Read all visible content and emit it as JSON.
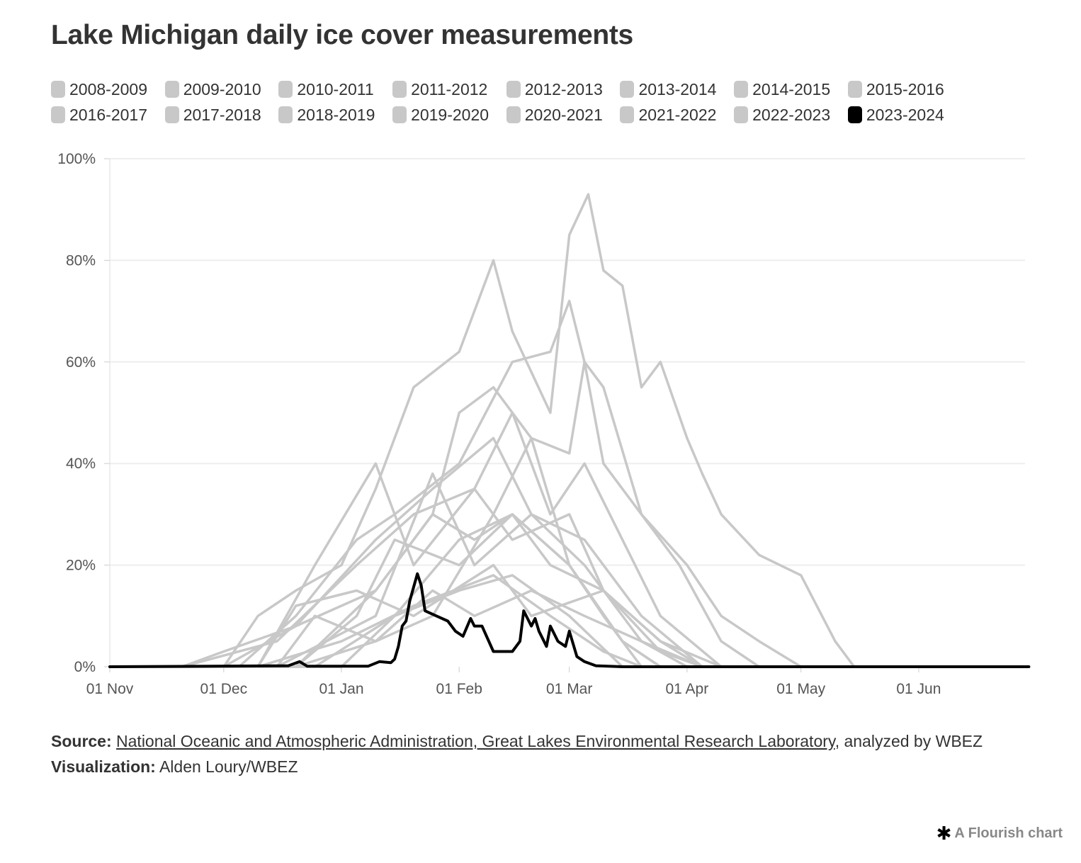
{
  "title": "Lake Michigan daily ice cover measurements",
  "colors": {
    "highlight": "#000000",
    "other": "#c8c8c8",
    "grid": "#eeeeee",
    "text": "#333333"
  },
  "footer": {
    "source_label": "Source:",
    "source_link": "National Oceanic and Atmospheric Administration, Great Lakes Environmental Research Laboratory",
    "source_suffix": ", analyzed by WBEZ",
    "viz_label": "Visualization:",
    "viz_text": "Alden Loury/WBEZ"
  },
  "branding": {
    "icon": "asterisk-icon",
    "text": "A Flourish chart"
  },
  "chart_data": {
    "type": "line",
    "xlabel": "",
    "ylabel": "",
    "x_range": [
      "Nov 1",
      "Jun 30"
    ],
    "ylim": [
      0,
      100
    ],
    "y_ticks": [
      "0%",
      "20%",
      "40%",
      "60%",
      "80%",
      "100%"
    ],
    "x_ticks": [
      "01 Nov",
      "01 Dec",
      "01 Jan",
      "01 Feb",
      "01 Mar",
      "01 Apr",
      "01 May",
      "01 Jun"
    ],
    "grid": "horizontal",
    "legend_placement": "top",
    "highlight_series": "2023-2024",
    "series": [
      {
        "name": "2008-2009",
        "points": [
          [
            "Nov 20",
            0
          ],
          [
            "Dec 15",
            5
          ],
          [
            "Jan 5",
            20
          ],
          [
            "Jan 20",
            30
          ],
          [
            "Feb 5",
            35
          ],
          [
            "Feb 15",
            25
          ],
          [
            "Mar 1",
            30
          ],
          [
            "Mar 10",
            15
          ],
          [
            "Mar 25",
            5
          ],
          [
            "Apr 10",
            0
          ]
        ]
      },
      {
        "name": "2009-2010",
        "points": [
          [
            "Dec 20",
            0
          ],
          [
            "Jan 5",
            10
          ],
          [
            "Jan 15",
            25
          ],
          [
            "Feb 1",
            20
          ],
          [
            "Feb 15",
            30
          ],
          [
            "Mar 1",
            20
          ],
          [
            "Mar 15",
            5
          ],
          [
            "Mar 25",
            0
          ]
        ]
      },
      {
        "name": "2010-2011",
        "points": [
          [
            "Dec 1",
            0
          ],
          [
            "Dec 20",
            8
          ],
          [
            "Jan 10",
            25
          ],
          [
            "Jan 25",
            35
          ],
          [
            "Feb 10",
            45
          ],
          [
            "Feb 20",
            30
          ],
          [
            "Mar 5",
            20
          ],
          [
            "Mar 20",
            5
          ],
          [
            "Apr 5",
            0
          ]
        ]
      },
      {
        "name": "2011-2012",
        "points": [
          [
            "Dec 25",
            0
          ],
          [
            "Jan 15",
            10
          ],
          [
            "Feb 1",
            15
          ],
          [
            "Feb 15",
            18
          ],
          [
            "Mar 1",
            10
          ],
          [
            "Mar 15",
            0
          ]
        ]
      },
      {
        "name": "2012-2013",
        "points": [
          [
            "Dec 15",
            0
          ],
          [
            "Jan 10",
            10
          ],
          [
            "Jan 25",
            38
          ],
          [
            "Feb 5",
            20
          ],
          [
            "Feb 20",
            30
          ],
          [
            "Mar 5",
            25
          ],
          [
            "Mar 20",
            10
          ],
          [
            "Apr 5",
            0
          ]
        ]
      },
      {
        "name": "2013-2014",
        "points": [
          [
            "Dec 1",
            0
          ],
          [
            "Dec 10",
            10
          ],
          [
            "Dec 20",
            15
          ],
          [
            "Jan 1",
            20
          ],
          [
            "Jan 10",
            35
          ],
          [
            "Jan 20",
            55
          ],
          [
            "Feb 1",
            62
          ],
          [
            "Feb 10",
            80
          ],
          [
            "Feb 15",
            66
          ],
          [
            "Feb 25",
            50
          ],
          [
            "Mar 1",
            85
          ],
          [
            "Mar 6",
            93
          ],
          [
            "Mar 10",
            78
          ],
          [
            "Mar 15",
            75
          ],
          [
            "Mar 20",
            55
          ],
          [
            "Mar 25",
            60
          ],
          [
            "Apr 1",
            45
          ],
          [
            "Apr 5",
            38
          ],
          [
            "Apr 10",
            30
          ],
          [
            "Apr 20",
            22
          ],
          [
            "May 1",
            18
          ],
          [
            "May 10",
            5
          ],
          [
            "May 15",
            0
          ]
        ]
      },
      {
        "name": "2014-2015",
        "points": [
          [
            "Dec 5",
            0
          ],
          [
            "Dec 20",
            10
          ],
          [
            "Jan 5",
            25
          ],
          [
            "Jan 15",
            30
          ],
          [
            "Feb 1",
            40
          ],
          [
            "Feb 15",
            60
          ],
          [
            "Feb 25",
            62
          ],
          [
            "Mar 1",
            72
          ],
          [
            "Mar 5",
            60
          ],
          [
            "Mar 10",
            40
          ],
          [
            "Mar 20",
            30
          ],
          [
            "Apr 1",
            20
          ],
          [
            "Apr 10",
            10
          ],
          [
            "Apr 20",
            5
          ],
          [
            "May 1",
            0
          ]
        ]
      },
      {
        "name": "2015-2016",
        "points": [
          [
            "Jan 1",
            0
          ],
          [
            "Jan 15",
            10
          ],
          [
            "Feb 1",
            25
          ],
          [
            "Feb 15",
            30
          ],
          [
            "Mar 1",
            20
          ],
          [
            "Mar 10",
            10
          ],
          [
            "Mar 20",
            0
          ]
        ]
      },
      {
        "name": "2016-2017",
        "points": [
          [
            "Dec 10",
            0
          ],
          [
            "Dec 20",
            12
          ],
          [
            "Jan 5",
            15
          ],
          [
            "Jan 20",
            10
          ],
          [
            "Feb 10",
            20
          ],
          [
            "Feb 20",
            10
          ],
          [
            "Mar 10",
            15
          ],
          [
            "Mar 25",
            3
          ],
          [
            "Apr 5",
            0
          ]
        ]
      },
      {
        "name": "2017-2018",
        "points": [
          [
            "Dec 10",
            0
          ],
          [
            "Dec 25",
            20
          ],
          [
            "Jan 10",
            40
          ],
          [
            "Jan 20",
            20
          ],
          [
            "Feb 5",
            35
          ],
          [
            "Feb 15",
            50
          ],
          [
            "Feb 25",
            30
          ],
          [
            "Mar 5",
            40
          ],
          [
            "Mar 15",
            25
          ],
          [
            "Mar 25",
            10
          ],
          [
            "Apr 10",
            0
          ]
        ]
      },
      {
        "name": "2018-2019",
        "points": [
          [
            "Nov 20",
            0
          ],
          [
            "Dec 1",
            3
          ],
          [
            "Dec 20",
            8
          ],
          [
            "Jan 10",
            15
          ],
          [
            "Jan 25",
            30
          ],
          [
            "Feb 1",
            50
          ],
          [
            "Feb 10",
            55
          ],
          [
            "Feb 20",
            45
          ],
          [
            "Mar 1",
            42
          ],
          [
            "Mar 5",
            60
          ],
          [
            "Mar 10",
            55
          ],
          [
            "Mar 20",
            30
          ],
          [
            "Mar 30",
            20
          ],
          [
            "Apr 10",
            5
          ],
          [
            "Apr 20",
            0
          ]
        ]
      },
      {
        "name": "2019-2020",
        "points": [
          [
            "Dec 10",
            0
          ],
          [
            "Jan 1",
            5
          ],
          [
            "Jan 20",
            12
          ],
          [
            "Feb 10",
            18
          ],
          [
            "Feb 25",
            10
          ],
          [
            "Mar 10",
            3
          ],
          [
            "Mar 20",
            0
          ]
        ]
      },
      {
        "name": "2020-2021",
        "points": [
          [
            "Dec 20",
            0
          ],
          [
            "Jan 10",
            5
          ],
          [
            "Jan 25",
            10
          ],
          [
            "Feb 10",
            30
          ],
          [
            "Feb 20",
            45
          ],
          [
            "Mar 1",
            20
          ],
          [
            "Mar 15",
            5
          ],
          [
            "Mar 25",
            0
          ]
        ]
      },
      {
        "name": "2021-2022",
        "points": [
          [
            "Dec 20",
            0
          ],
          [
            "Jan 10",
            15
          ],
          [
            "Jan 25",
            30
          ],
          [
            "Feb 5",
            25
          ],
          [
            "Feb 15",
            30
          ],
          [
            "Feb 25",
            20
          ],
          [
            "Mar 10",
            15
          ],
          [
            "Mar 25",
            5
          ],
          [
            "Apr 5",
            0
          ]
        ]
      },
      {
        "name": "2022-2023",
        "points": [
          [
            "Dec 15",
            0
          ],
          [
            "Dec 25",
            10
          ],
          [
            "Jan 10",
            5
          ],
          [
            "Jan 25",
            15
          ],
          [
            "Feb 5",
            10
          ],
          [
            "Feb 20",
            15
          ],
          [
            "Mar 5",
            10
          ],
          [
            "Mar 20",
            5
          ],
          [
            "Apr 1",
            0
          ]
        ]
      },
      {
        "name": "2023-2024",
        "points": [
          [
            "Nov 1",
            0
          ],
          [
            "Dec 18",
            0.2
          ],
          [
            "Dec 21",
            1
          ],
          [
            "Dec 23",
            0.1
          ],
          [
            "Jan 8",
            0.1
          ],
          [
            "Jan 11",
            1
          ],
          [
            "Jan 14",
            0.8
          ],
          [
            "Jan 15",
            1.5
          ],
          [
            "Jan 16",
            4
          ],
          [
            "Jan 17",
            8
          ],
          [
            "Jan 18",
            9
          ],
          [
            "Jan 19",
            13
          ],
          [
            "Jan 21",
            18.3
          ],
          [
            "Jan 22",
            16
          ],
          [
            "Jan 23",
            11
          ],
          [
            "Jan 26",
            10
          ],
          [
            "Jan 29",
            9
          ],
          [
            "Jan 31",
            7
          ],
          [
            "Feb 2",
            6
          ],
          [
            "Feb 4",
            9.5
          ],
          [
            "Feb 5",
            8
          ],
          [
            "Feb 7",
            8
          ],
          [
            "Feb 10",
            3
          ],
          [
            "Feb 15",
            3
          ],
          [
            "Feb 17",
            5
          ],
          [
            "Feb 18",
            11
          ],
          [
            "Feb 20",
            8
          ],
          [
            "Feb 21",
            9.5
          ],
          [
            "Feb 22",
            7
          ],
          [
            "Feb 24",
            4
          ],
          [
            "Feb 25",
            8
          ],
          [
            "Feb 27",
            5
          ],
          [
            "Feb 29",
            4
          ],
          [
            "Mar 1",
            7
          ],
          [
            "Mar 3",
            2
          ],
          [
            "Mar 5",
            1
          ],
          [
            "Mar 8",
            0.2
          ],
          [
            "Mar 15",
            0
          ],
          [
            "Jun 30",
            0
          ]
        ]
      }
    ]
  }
}
